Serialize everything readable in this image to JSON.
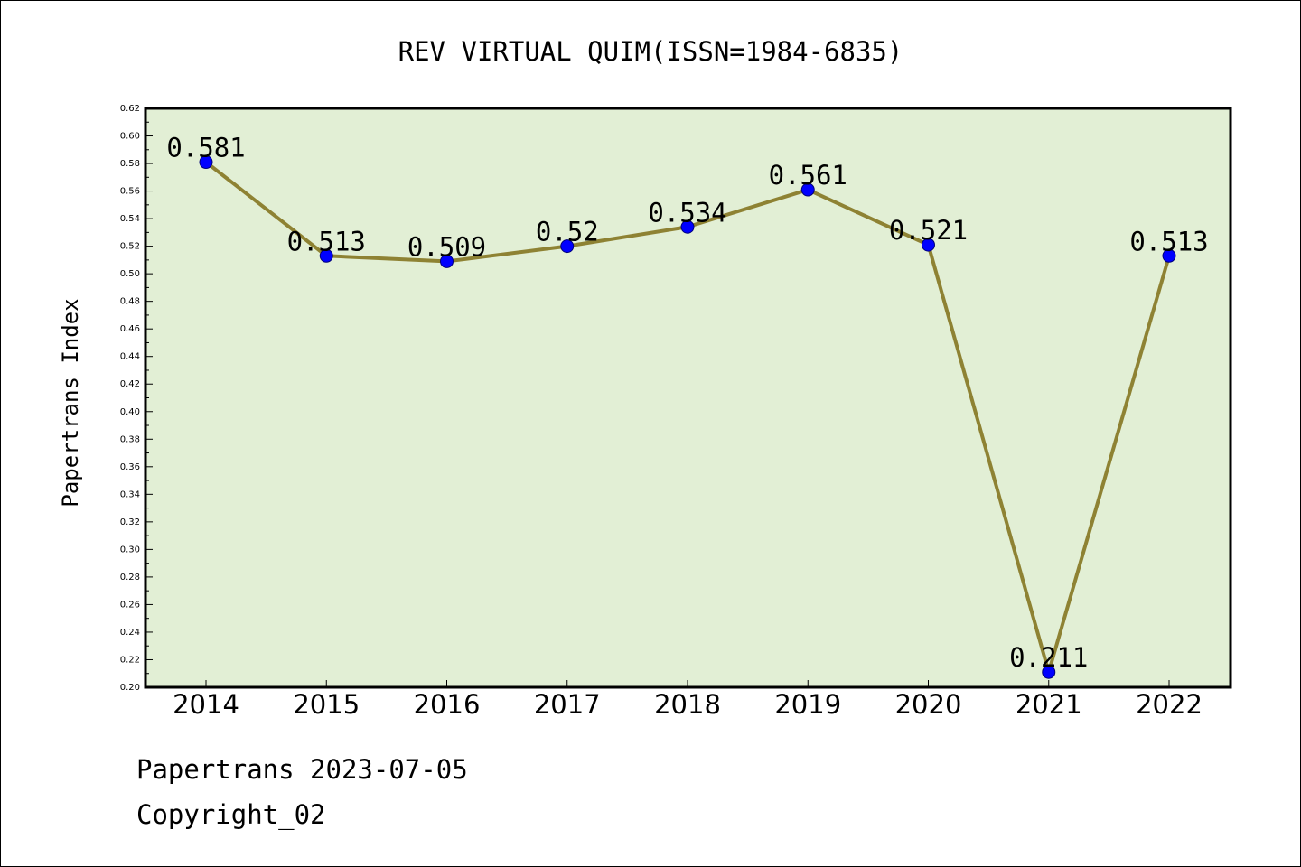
{
  "chart_data": {
    "type": "line",
    "title": "REV VIRTUAL QUIM(ISSN=1984-6835)",
    "xlabel": "",
    "ylabel": "Papertrans Index",
    "categories": [
      "2014",
      "2015",
      "2016",
      "2017",
      "2018",
      "2019",
      "2020",
      "2021",
      "2022"
    ],
    "series": [
      {
        "values": [
          0.581,
          0.513,
          0.509,
          0.52,
          0.534,
          0.561,
          0.521,
          0.211,
          0.513
        ],
        "labels": [
          "0.581",
          "0.513",
          "0.509",
          "0.52",
          "0.534",
          "0.561",
          "0.521",
          "0.211",
          "0.513"
        ]
      }
    ],
    "ylim": [
      0.2,
      0.62
    ],
    "yticks": [
      "0.20",
      "0.22",
      "0.24",
      "0.26",
      "0.28",
      "0.30",
      "0.32",
      "0.34",
      "0.36",
      "0.38",
      "0.40",
      "0.42",
      "0.44",
      "0.46",
      "0.48",
      "0.50",
      "0.52",
      "0.54",
      "0.56",
      "0.58",
      "0.60",
      "0.62"
    ],
    "grid": false,
    "legend": "none",
    "colors": {
      "plot_background": "#e2efd5",
      "line": "#8e8233",
      "marker": "#0000ff"
    }
  },
  "footer": {
    "date_line": "Papertrans 2023-07-05",
    "copyright_line": "Copyright_02"
  }
}
